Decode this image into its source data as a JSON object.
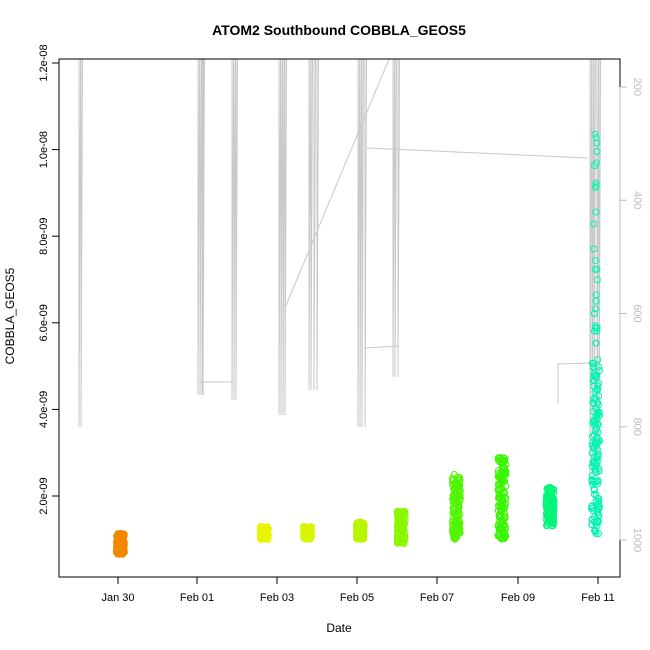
{
  "chart_data": {
    "type": "scatter",
    "title": "ATOM2 Southbound COBBLA_GEOS5",
    "xlabel": "Date",
    "ylabel": "COBBLA_GEOS5",
    "x_ticks": [
      "Jan 30",
      "Feb 01",
      "Feb 03",
      "Feb 05",
      "Feb 07",
      "Feb 09",
      "Feb 11"
    ],
    "y_ticks": [
      "2.0e-09",
      "4.0e-09",
      "6.0e-09",
      "8.0e-09",
      "1.0e-08",
      "1.2e-08"
    ],
    "y2_ticks": [
      "200",
      "400",
      "600",
      "800",
      "1000"
    ],
    "xlim_days": [
      28.0,
      39.5
    ],
    "ylim": [
      2e-10,
      1.22e-08
    ],
    "y2lim": [
      1070,
      170
    ],
    "grid": false,
    "secondary_axis": "altitude trace (right axis, gray line)",
    "series": [
      {
        "date_day": 29.05,
        "color": "#F58700",
        "y_min": 6.5e-10,
        "y_max": 1.15e-09
      },
      {
        "date_day": 32.05,
        "color": "#E8F500",
        "y_min": 1e-09,
        "y_max": 1.3e-09
      },
      {
        "date_day": 32.95,
        "color": "#D8F500",
        "y_min": 1e-09,
        "y_max": 1.3e-09
      },
      {
        "date_day": 34.05,
        "color": "#B8F500",
        "y_min": 1e-09,
        "y_max": 1.4e-09
      },
      {
        "date_day": 34.9,
        "color": "#8CF500",
        "y_min": 9e-10,
        "y_max": 1.65e-09
      },
      {
        "date_day": 36.05,
        "color": "#50F500",
        "y_min": 1e-09,
        "y_max": 2.5e-09
      },
      {
        "date_day": 37.0,
        "color": "#38F500",
        "y_min": 1e-09,
        "y_max": 2.9e-09
      },
      {
        "date_day": 38.0,
        "color": "#00F57A",
        "y_min": 1.3e-09,
        "y_max": 2.2e-09
      },
      {
        "date_day": 38.95,
        "color": "#00F5B0",
        "y_min": 1.1e-09,
        "y_max": 5.2e-09
      },
      {
        "date_day": 38.95,
        "color": "#00F5B0",
        "y_min": 5.5e-09,
        "y_max": 1.16e-08,
        "sparse": true
      }
    ]
  }
}
